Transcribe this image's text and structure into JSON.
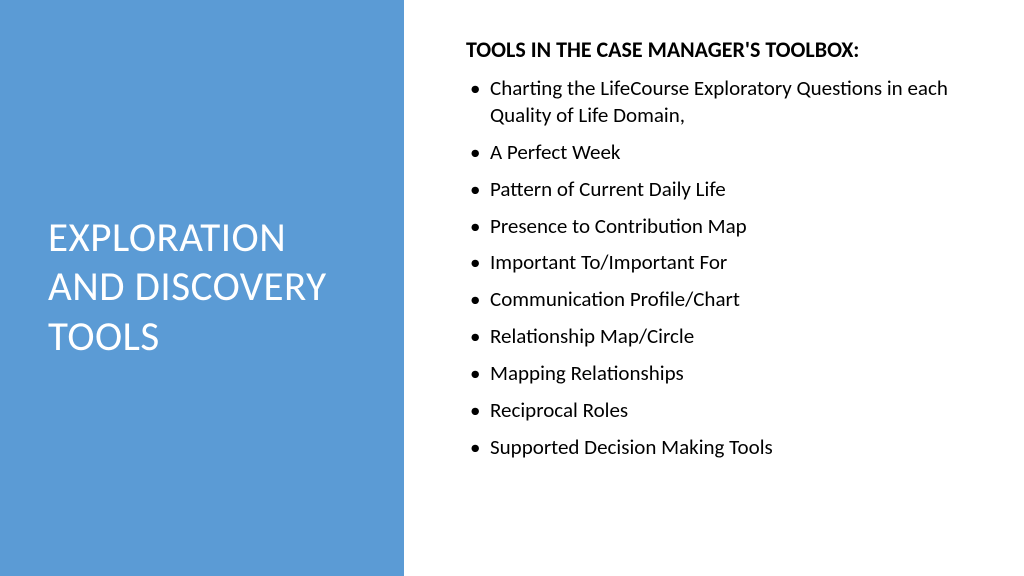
{
  "left": {
    "title": "EXPLORATION AND DISCOVERY TOOLS"
  },
  "right": {
    "heading": "TOOLS IN THE CASE MANAGER'S TOOLBOX:",
    "bullets": [
      "Charting the LifeCourse Exploratory Questions in each Quality of Life Domain,",
      "A Perfect Week",
      "Pattern of Current Daily Life",
      "Presence to Contribution Map",
      "Important To/Important For",
      "Communication Profile/Chart",
      "Relationship Map/Circle",
      "Mapping Relationships",
      "Reciprocal Roles",
      "Supported Decision Making Tools"
    ]
  },
  "colors": {
    "left_bg": "#5b9bd5",
    "title_color": "#ffffff",
    "text_color": "#000000",
    "right_bg": "#ffffff"
  }
}
